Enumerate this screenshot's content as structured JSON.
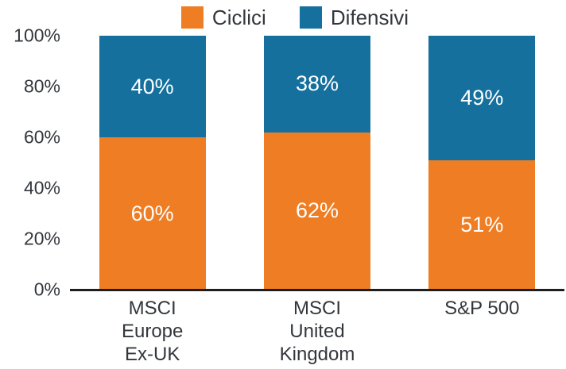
{
  "chart_data": {
    "type": "bar",
    "stacked": true,
    "title": "",
    "categories": [
      "MSCI Europe Ex-UK",
      "MSCI United Kingdom",
      "S&P 500"
    ],
    "category_lines": [
      [
        "MSCI",
        "Europe",
        "Ex-UK"
      ],
      [
        "MSCI",
        "United",
        "Kingdom"
      ],
      [
        "S&P 500"
      ]
    ],
    "series": [
      {
        "name": "Ciclici",
        "color": "#EF7D23",
        "values": [
          60,
          62,
          51
        ],
        "labels": [
          "60%",
          "62%",
          "51%"
        ]
      },
      {
        "name": "Difensivi",
        "color": "#15709E",
        "values": [
          40,
          38,
          49
        ],
        "labels": [
          "40%",
          "38%",
          "49%"
        ]
      }
    ],
    "ylim": [
      0,
      100
    ],
    "yticks": [
      "0%",
      "20%",
      "40%",
      "60%",
      "80%",
      "100%"
    ],
    "legend_position": "top",
    "grid": false,
    "bar_label_color": "#ffffff",
    "axis_text_color": "#33373c",
    "axis_line_color": "#1e1e1e"
  }
}
